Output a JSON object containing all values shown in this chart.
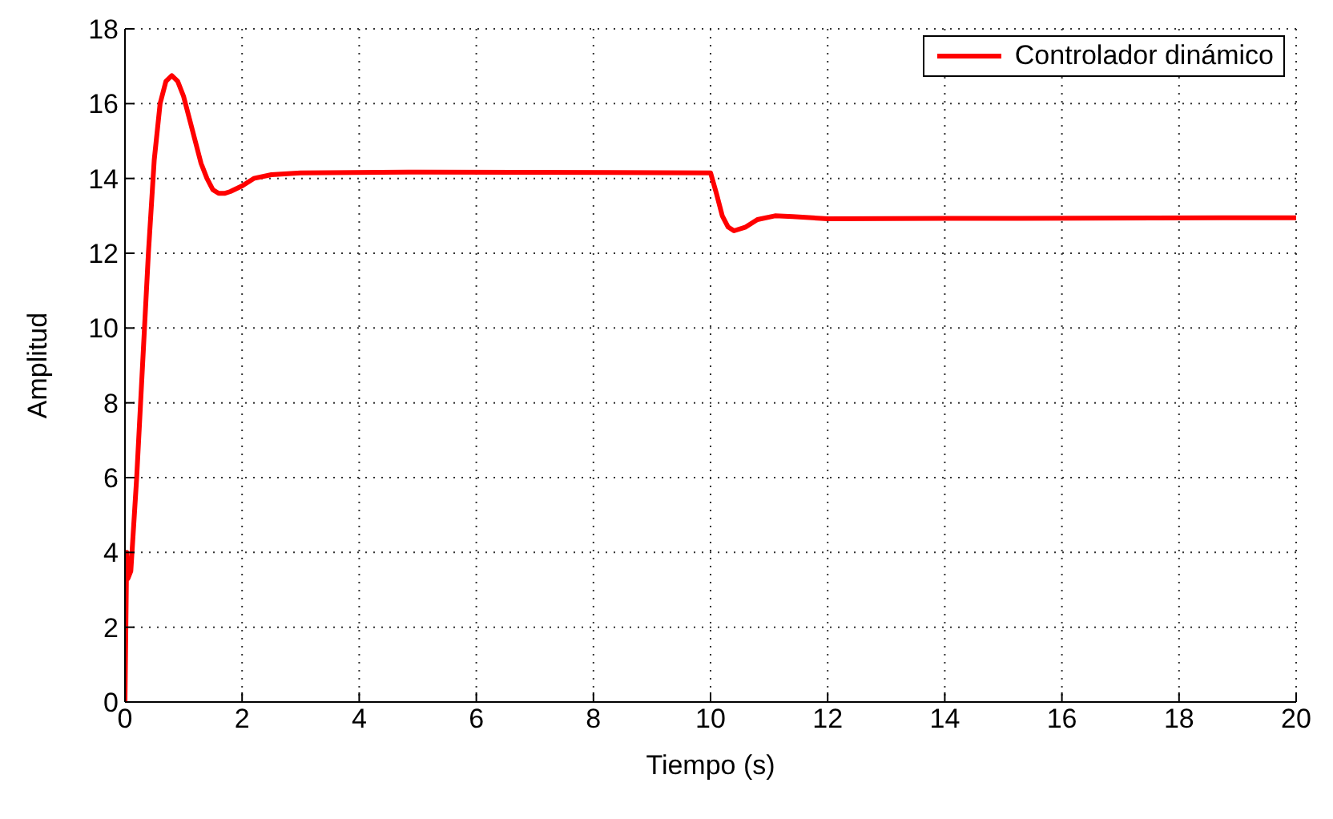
{
  "chart_data": {
    "type": "line",
    "xlabel": "Tiempo (s)",
    "ylabel": "Amplitud",
    "xlim": [
      0,
      20
    ],
    "ylim": [
      0,
      18
    ],
    "xticks": [
      0,
      2,
      4,
      6,
      8,
      10,
      12,
      14,
      16,
      18,
      20
    ],
    "yticks": [
      0,
      2,
      4,
      6,
      8,
      10,
      12,
      14,
      16,
      18
    ],
    "grid": true,
    "legend": "top right",
    "marker": "none",
    "line_style": "solid",
    "series": [
      {
        "name": "Controlador dinámico",
        "color": "#ff0000",
        "x": [
          0,
          0.03,
          0.05,
          0.1,
          0.2,
          0.3,
          0.4,
          0.5,
          0.6,
          0.7,
          0.8,
          0.9,
          1.0,
          1.1,
          1.2,
          1.3,
          1.4,
          1.5,
          1.6,
          1.7,
          1.8,
          2.0,
          2.2,
          2.5,
          3,
          5,
          10,
          10.1,
          10.2,
          10.3,
          10.4,
          10.6,
          10.8,
          11.1,
          11.4,
          12,
          14,
          20
        ],
        "values": [
          0,
          4,
          3.3,
          3.5,
          6,
          9,
          12,
          14.5,
          16,
          16.6,
          16.75,
          16.6,
          16.2,
          15.6,
          15,
          14.4,
          14,
          13.7,
          13.6,
          13.6,
          13.65,
          13.8,
          14,
          14.1,
          14.15,
          14.17,
          14.15,
          13.6,
          13,
          12.7,
          12.6,
          12.7,
          12.9,
          13.0,
          12.98,
          12.92,
          12.93,
          12.95
        ]
      }
    ]
  }
}
